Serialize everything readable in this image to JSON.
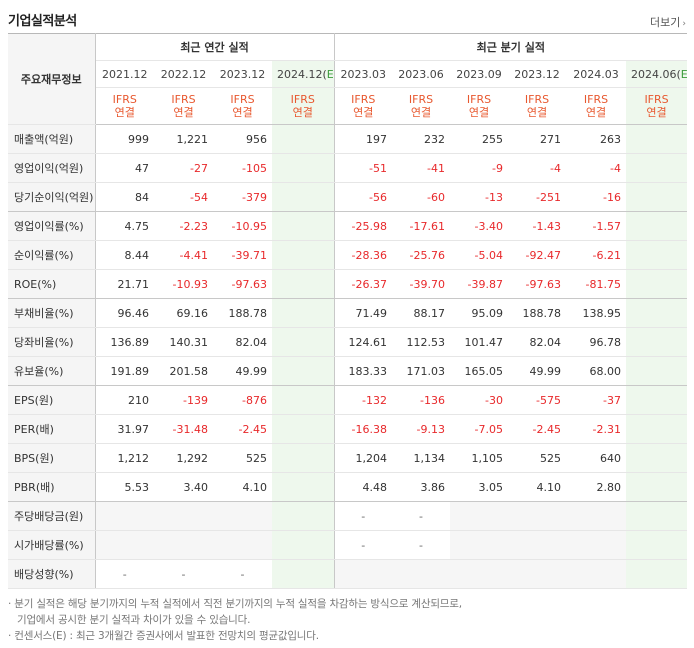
{
  "header": {
    "title": "기업실적분석",
    "more_label": "더보기"
  },
  "table": {
    "row_header_label": "주요재무정보",
    "groups": {
      "annual": "최근 연간 실적",
      "quarter": "최근 분기 실적"
    },
    "periods": [
      "2021.12",
      "2022.12",
      "2023.12",
      "2024.12(E)",
      "2023.03",
      "2023.06",
      "2023.09",
      "2023.12",
      "2024.03",
      "2024.06(E)"
    ],
    "ifrs": [
      "IFRS",
      "연결"
    ],
    "rows": [
      {
        "label": "매출액(억원)",
        "values": [
          "999",
          "1,221",
          "956",
          "",
          "197",
          "232",
          "255",
          "271",
          "263",
          ""
        ]
      },
      {
        "label": "영업이익(억원)",
        "values": [
          "47",
          "-27",
          "-105",
          "",
          "-51",
          "-41",
          "-9",
          "-4",
          "-4",
          ""
        ]
      },
      {
        "label": "당기순이익(억원)",
        "values": [
          "84",
          "-54",
          "-379",
          "",
          "-56",
          "-60",
          "-13",
          "-251",
          "-16",
          ""
        ]
      },
      {
        "label": "영업이익률(%)",
        "values": [
          "4.75",
          "-2.23",
          "-10.95",
          "",
          "-25.98",
          "-17.61",
          "-3.40",
          "-1.43",
          "-1.57",
          ""
        ]
      },
      {
        "label": "순이익률(%)",
        "values": [
          "8.44",
          "-4.41",
          "-39.71",
          "",
          "-28.36",
          "-25.76",
          "-5.04",
          "-92.47",
          "-6.21",
          ""
        ]
      },
      {
        "label": "ROE(%)",
        "values": [
          "21.71",
          "-10.93",
          "-97.63",
          "",
          "-26.37",
          "-39.70",
          "-39.87",
          "-97.63",
          "-81.75",
          ""
        ]
      },
      {
        "label": "부채비율(%)",
        "values": [
          "96.46",
          "69.16",
          "188.78",
          "",
          "71.49",
          "88.17",
          "95.09",
          "188.78",
          "138.95",
          ""
        ]
      },
      {
        "label": "당좌비율(%)",
        "values": [
          "136.89",
          "140.31",
          "82.04",
          "",
          "124.61",
          "112.53",
          "101.47",
          "82.04",
          "96.78",
          ""
        ]
      },
      {
        "label": "유보율(%)",
        "values": [
          "191.89",
          "201.58",
          "49.99",
          "",
          "183.33",
          "171.03",
          "165.05",
          "49.99",
          "68.00",
          ""
        ]
      },
      {
        "label": "EPS(원)",
        "values": [
          "210",
          "-139",
          "-876",
          "",
          "-132",
          "-136",
          "-30",
          "-575",
          "-37",
          ""
        ]
      },
      {
        "label": "PER(배)",
        "values": [
          "31.97",
          "-31.48",
          "-2.45",
          "",
          "-16.38",
          "-9.13",
          "-7.05",
          "-2.45",
          "-2.31",
          ""
        ]
      },
      {
        "label": "BPS(원)",
        "values": [
          "1,212",
          "1,292",
          "525",
          "",
          "1,204",
          "1,134",
          "1,105",
          "525",
          "640",
          ""
        ]
      },
      {
        "label": "PBR(배)",
        "values": [
          "5.53",
          "3.40",
          "4.10",
          "",
          "4.48",
          "3.86",
          "3.05",
          "4.10",
          "2.80",
          ""
        ]
      },
      {
        "label": "주당배당금(원)",
        "values": [
          "",
          "",
          "",
          "",
          "-",
          "-",
          "",
          "",
          "",
          ""
        ]
      },
      {
        "label": "시가배당률(%)",
        "values": [
          "",
          "",
          "",
          "",
          "-",
          "-",
          "",
          "",
          "",
          ""
        ]
      },
      {
        "label": "배당성향(%)",
        "values": [
          "-",
          "-",
          "-",
          "",
          "",
          "",
          "",
          "",
          "",
          ""
        ]
      }
    ]
  },
  "notes": {
    "line1": "· 분기 실적은 해당 분기까지의 누적 실적에서 직전 분기까지의 누적 실적을 차감하는 방식으로 계산되므로,",
    "line2": "기업에서 공시한 분기 실적과 차이가 있을 수 있습니다.",
    "line3": "· 컨센서스(E) : 최근 3개월간 증권사에서 발표한 전망치의 평균값입니다."
  },
  "colors": {
    "negative": "#e8292b",
    "ifrs": "#e8582f",
    "estimate_bg": "#eef8ed"
  }
}
